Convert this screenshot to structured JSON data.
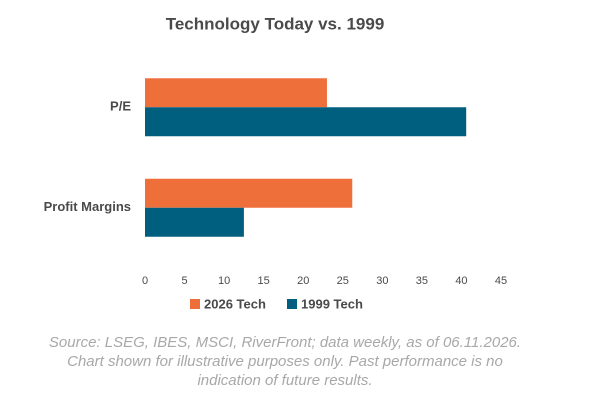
{
  "chart_data": {
    "type": "hbar",
    "title": "Technology Today vs. 1999",
    "categories": [
      "P/E",
      "Profit Margins"
    ],
    "series": [
      {
        "name": "2026 Tech",
        "color": "#ef6f3b",
        "values": [
          23,
          26.2
        ]
      },
      {
        "name": "1999 Tech",
        "color": "#005e7e",
        "values": [
          40.6,
          12.5
        ]
      }
    ],
    "xlim": [
      0,
      45
    ],
    "xticks": [
      0,
      5,
      10,
      15,
      20,
      25,
      30,
      35,
      40,
      45
    ],
    "legend": "bottom",
    "source": [
      "Source: LSEG, IBES, MSCI, RiverFront; data weekly, as of 06.11.2026.",
      "Chart shown for illustrative purposes only. Past performance is no",
      "indication of future results."
    ]
  }
}
